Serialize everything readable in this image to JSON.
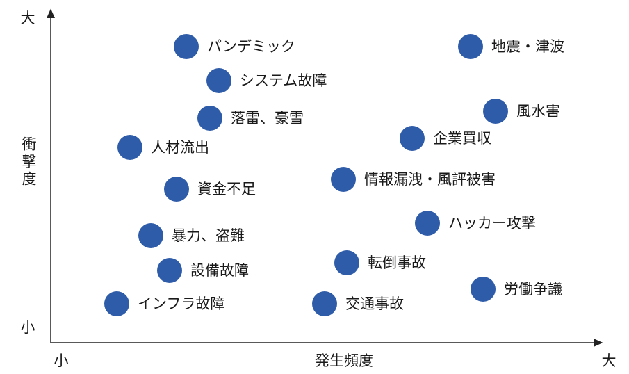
{
  "axes": {
    "y_high": "大",
    "y_label": "衝撃度",
    "y_low": "小",
    "x_low": "小",
    "x_label": "発生頻度",
    "x_high": "大"
  },
  "nodes": [
    {
      "label": "パンデミック"
    },
    {
      "label": "システム故障"
    },
    {
      "label": "落雷、豪雪"
    },
    {
      "label": "人材流出"
    },
    {
      "label": "資金不足"
    },
    {
      "label": "暴力、盗難"
    },
    {
      "label": "設備故障"
    },
    {
      "label": "インフラ故障"
    },
    {
      "label": "地震・津波"
    },
    {
      "label": "風水害"
    },
    {
      "label": "企業買収"
    },
    {
      "label": "情報漏洩・風評被害"
    },
    {
      "label": "ハッカー攻撃"
    },
    {
      "label": "転倒事故"
    },
    {
      "label": "労働争議"
    },
    {
      "label": "交通事故"
    }
  ]
}
